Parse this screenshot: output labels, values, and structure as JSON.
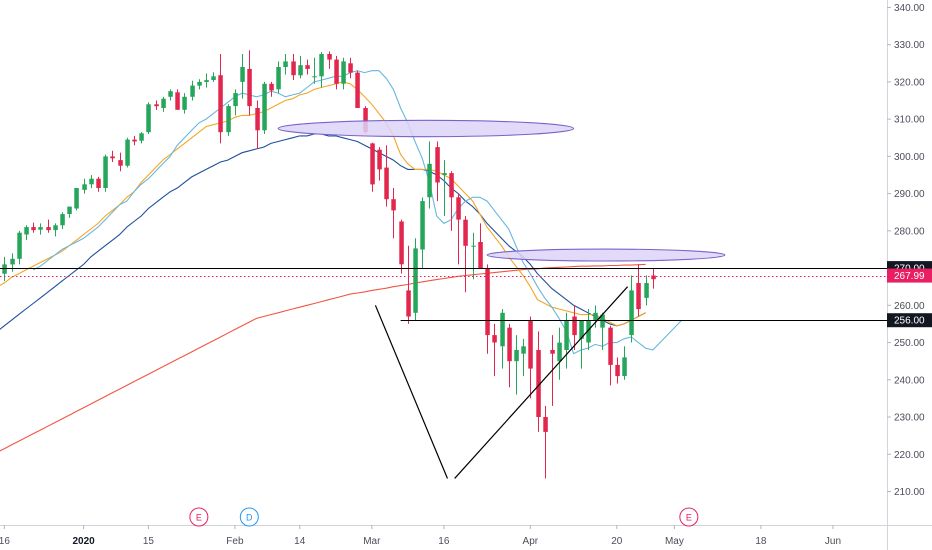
{
  "chart_data": {
    "type": "candlestick",
    "x_ticks": [
      {
        "label": "16",
        "bar": 0,
        "bold": false
      },
      {
        "label": "2020",
        "bar": 11,
        "bold": true
      },
      {
        "label": "15",
        "bar": 20,
        "bold": false
      },
      {
        "label": "Feb",
        "bar": 32,
        "bold": false
      },
      {
        "label": "14",
        "bar": 41,
        "bold": false
      },
      {
        "label": "Mar",
        "bar": 51,
        "bold": false
      },
      {
        "label": "16",
        "bar": 61,
        "bold": false
      },
      {
        "label": "Apr",
        "bar": 73,
        "bold": false
      },
      {
        "label": "20",
        "bar": 85,
        "bold": false
      },
      {
        "label": "May",
        "bar": 93,
        "bold": false
      },
      {
        "label": "18",
        "bar": 105,
        "bold": false
      },
      {
        "label": "Jun",
        "bar": 115,
        "bold": false
      }
    ],
    "y_ticks": [
      "340.00",
      "330.00",
      "320.00",
      "310.00",
      "300.00",
      "290.00",
      "280.00",
      "270.00",
      "260.00",
      "250.00",
      "240.00",
      "230.00",
      "220.00",
      "210.00"
    ],
    "ylim": [
      201,
      342
    ],
    "xlim": [
      -0.6,
      122.5
    ],
    "candles": [
      [
        268.5,
        273,
        266.5,
        271
      ],
      [
        271,
        274,
        269,
        272.5
      ],
      [
        272.5,
        280,
        271,
        279.5
      ],
      [
        279,
        281.5,
        277.5,
        281
      ],
      [
        281,
        282.2,
        279.5,
        280.2
      ],
      [
        280.3,
        282,
        279,
        281
      ],
      [
        281,
        283,
        279.5,
        280.2
      ],
      [
        280.2,
        282,
        278.5,
        281.5
      ],
      [
        281.5,
        285,
        280.5,
        284.5
      ],
      [
        284.5,
        286.5,
        283.5,
        286.5
      ],
      [
        286,
        291.5,
        285.5,
        291.5
      ],
      [
        291,
        294,
        290,
        292.5
      ],
      [
        292.5,
        295,
        291.5,
        294
      ],
      [
        294,
        294.5,
        290.5,
        291.5
      ],
      [
        291.5,
        300.5,
        290.5,
        300
      ],
      [
        300,
        301.5,
        298.5,
        299.5
      ],
      [
        299,
        301,
        296,
        297.5
      ],
      [
        297.5,
        305,
        297,
        304.5
      ],
      [
        304.5,
        305.5,
        303,
        304
      ],
      [
        304.2,
        306.5,
        303.5,
        306.2
      ],
      [
        306.5,
        314.5,
        306,
        314
      ],
      [
        314,
        315,
        312.5,
        313.5
      ],
      [
        313,
        316,
        312,
        315.5
      ],
      [
        316,
        318,
        315,
        317.5
      ],
      [
        317.2,
        318,
        312.5,
        312.5
      ],
      [
        312.5,
        317,
        311.5,
        316
      ],
      [
        316,
        320.3,
        315,
        319
      ],
      [
        319,
        320.7,
        318,
        320
      ],
      [
        320,
        322.3,
        318.5,
        320.5
      ],
      [
        320.5,
        322.6,
        320,
        321.5
      ],
      [
        321.8,
        327.5,
        303.5,
        306.5
      ],
      [
        306.5,
        314,
        305.5,
        313.5
      ],
      [
        313.5,
        318,
        311,
        317
      ],
      [
        320,
        327.5,
        315.5,
        324
      ],
      [
        323.5,
        328.5,
        311,
        313.5
      ],
      [
        313,
        315,
        302,
        307
      ],
      [
        307,
        320,
        306,
        319.5
      ],
      [
        319.5,
        320,
        316,
        317.7
      ],
      [
        318,
        325.5,
        317,
        324
      ],
      [
        324,
        327.5,
        322,
        325.5
      ],
      [
        325.5,
        327.5,
        320.5,
        321.8
      ],
      [
        321.8,
        327,
        321,
        324.5
      ],
      [
        324.5,
        326,
        322,
        323.5
      ],
      [
        321.5,
        326.5,
        319.5,
        321.5
      ],
      [
        321.5,
        328,
        318.5,
        327.5
      ],
      [
        327.5,
        328.2,
        323.5,
        326
      ],
      [
        326,
        327,
        318,
        319.5
      ],
      [
        319.5,
        326.5,
        318,
        325.5
      ],
      [
        325,
        326.5,
        321,
        322.5
      ],
      [
        322.5,
        323,
        313,
        313
      ],
      [
        313,
        313.5,
        306,
        306.5
      ],
      [
        303.5,
        303.7,
        290.5,
        292.5
      ],
      [
        301.8,
        302.5,
        293.5,
        296.5
      ],
      [
        297,
        303,
        286.5,
        288.5
      ],
      [
        288.5,
        291.5,
        278,
        285.5
      ],
      [
        282.5,
        283,
        268.5,
        271
      ],
      [
        264,
        276,
        255,
        257
      ],
      [
        258,
        278,
        256,
        275.3
      ],
      [
        275,
        289,
        270,
        288
      ],
      [
        289,
        304,
        286,
        298
      ],
      [
        302.5,
        304,
        288,
        293
      ],
      [
        295,
        299,
        284,
        295.5
      ],
      [
        295.5,
        296,
        280,
        289
      ],
      [
        289,
        290,
        271,
        283
      ],
      [
        283,
        284,
        263.5,
        276
      ],
      [
        276,
        279.5,
        267,
        276
      ],
      [
        277,
        282,
        270,
        270
      ],
      [
        270,
        271,
        247,
        252
      ],
      [
        252,
        255,
        241,
        250
      ],
      [
        249,
        259,
        243,
        258
      ],
      [
        254,
        255,
        238,
        245
      ],
      [
        245,
        252,
        236,
        248
      ],
      [
        247,
        251,
        241,
        249
      ],
      [
        256,
        257,
        235,
        243
      ],
      [
        248,
        253,
        226,
        230
      ],
      [
        230,
        233,
        213.5,
        226
      ],
      [
        248,
        252,
        233,
        247
      ],
      [
        245,
        254,
        240,
        250
      ],
      [
        248,
        258,
        243,
        256
      ],
      [
        257,
        260,
        248,
        252
      ],
      [
        251,
        255,
        243,
        256
      ],
      [
        250,
        259,
        248,
        256
      ],
      [
        256,
        260,
        254,
        258
      ],
      [
        254,
        258,
        248,
        257.5
      ],
      [
        254,
        254.5,
        238.5,
        244
      ],
      [
        244,
        246,
        239,
        241
      ],
      [
        241,
        249,
        240,
        246
      ],
      [
        252,
        268,
        250,
        264
      ],
      [
        266,
        271,
        257,
        259
      ],
      [
        262,
        268,
        260,
        266
      ],
      [
        268,
        270,
        264.5,
        267
      ]
    ],
    "ema10": [
      269.5,
      270.5,
      272,
      273.5,
      275,
      276,
      277,
      278,
      279.5,
      281,
      283,
      285,
      287,
      288,
      290.5,
      292.5,
      294,
      296,
      298,
      300,
      303,
      305,
      307,
      309,
      310,
      311.5,
      313,
      314.5,
      316,
      317,
      316.5,
      316,
      316.5,
      317.5,
      317,
      316,
      316.5,
      317,
      318.5,
      320,
      320.5,
      321,
      321.5,
      321.5,
      322.5,
      323,
      322.5,
      323,
      323,
      321,
      318,
      313,
      309,
      304,
      299.5,
      293,
      284,
      282,
      283,
      286,
      288,
      289,
      289,
      288,
      285.5,
      283,
      280.5,
      276,
      271.5,
      268.5,
      265,
      262,
      259.5,
      256.5,
      253,
      247,
      248,
      248.5,
      249.5,
      249,
      250,
      250,
      251,
      251.5,
      250,
      248.5,
      248,
      250,
      252,
      254,
      256
    ],
    "ema20": [
      265,
      266,
      267.5,
      268.5,
      269.5,
      270.5,
      271.5,
      272.5,
      273.5,
      274.5,
      276,
      277.5,
      279,
      280.5,
      282,
      284,
      285.5,
      287,
      289,
      290.5,
      293,
      295,
      297,
      299,
      300.5,
      302,
      303.5,
      305,
      306.5,
      308,
      308.5,
      309,
      309.5,
      310.5,
      311,
      311,
      311.5,
      312,
      313,
      314,
      315,
      315.5,
      316.5,
      317,
      318,
      318.5,
      319,
      319.5,
      320,
      319.5,
      318,
      316,
      314,
      311.5,
      309,
      305.5,
      300.5,
      298,
      296.5,
      296.5,
      296.5,
      296,
      295,
      294,
      292,
      290,
      288,
      284.5,
      281,
      278.5,
      276,
      273,
      270.5,
      268,
      265,
      261.5,
      260.5,
      259.5,
      259,
      258.5,
      258,
      257.5,
      257.5,
      257.5,
      256.5,
      255.5,
      254.5,
      255,
      256,
      257,
      258
    ],
    "ema50": [
      253,
      254.5,
      256,
      257.5,
      259,
      260.5,
      262,
      263.5,
      265,
      266.5,
      268,
      269.5,
      271,
      273,
      274.5,
      276,
      277.5,
      279,
      281,
      282.5,
      284,
      286,
      287.5,
      289,
      290.5,
      291.5,
      293,
      294.5,
      295.5,
      296.5,
      297.5,
      298.5,
      299,
      300,
      301,
      301.5,
      302,
      302.5,
      303.5,
      304,
      304.5,
      305,
      305.5,
      305.5,
      306,
      306,
      305.5,
      305.5,
      305,
      304.5,
      304,
      303,
      302,
      301,
      300,
      299,
      297.5,
      296.5,
      296.5,
      296.5,
      296,
      295,
      293.5,
      291.5,
      290,
      288,
      286.5,
      284.5,
      282,
      280,
      278,
      276,
      274.5,
      273,
      271,
      268.5,
      266.5,
      264.5,
      263,
      261.5,
      260,
      259,
      258,
      257,
      256,
      255,
      254.5,
      255,
      256,
      257,
      258
    ],
    "sma200": [
      220.5,
      221.5,
      222.5,
      223.5,
      224.5,
      225.5,
      226.5,
      227.5,
      228.5,
      229.5,
      230.5,
      231.5,
      232.5,
      233.5,
      234.5,
      235.5,
      236.5,
      237.5,
      238.5,
      239.5,
      240.5,
      241.5,
      242.5,
      243.5,
      244.5,
      245.5,
      246.5,
      247.5,
      248.5,
      249.5,
      250.5,
      251.5,
      252.5,
      253.5,
      254.5,
      255.5,
      256.5,
      257,
      257.5,
      258,
      258.5,
      259,
      259.5,
      260,
      260.5,
      261,
      261.5,
      262,
      262.5,
      263,
      263.3,
      263.6,
      264,
      264.3,
      264.6,
      265,
      265.3,
      265.6,
      266,
      266.3,
      266.6,
      266.9,
      267.2,
      267.5,
      267.8,
      268,
      268.2,
      268.4,
      268.6,
      268.8,
      269,
      269.2,
      269.4,
      269.6,
      269.7,
      269.8,
      270,
      270.1,
      270.2,
      270.3,
      270.4,
      270.5,
      270.5,
      270.6,
      270.6,
      270.7,
      270.7,
      270.8,
      270.8,
      270.9,
      271
    ],
    "ma_x_start": -1,
    "ema10_x_start": 4,
    "ema20_x_start": -1,
    "sma200_x_start": -1,
    "hlines": [
      {
        "value": 270,
        "label": "270.00",
        "color": "#000000",
        "style": "solid",
        "tag_bg": "#131722"
      },
      {
        "value": 256,
        "label": "256.00",
        "color": "#000000",
        "style": "solid",
        "tag_bg": "#131722",
        "x_from": 55
      },
      {
        "value": 267.99,
        "label": "267.99",
        "color": "#e91e63",
        "style": "dotted",
        "tag_bg": "#e91e63"
      }
    ],
    "ellipses": [
      {
        "cx": 58.5,
        "cy": 307.5,
        "rx": 20.5,
        "ry": 2.2
      },
      {
        "cx": 83.5,
        "cy": 273.5,
        "rx": 16.5,
        "ry": 1.6
      }
    ],
    "pattern_lines": [
      [
        [
          51.5,
          260
        ],
        [
          61.5,
          213.5
        ]
      ],
      [
        [
          62.5,
          213.5
        ],
        [
          86.5,
          265
        ]
      ]
    ],
    "events": [
      {
        "label": "E",
        "bar": 27,
        "color": "#e91e63"
      },
      {
        "label": "D",
        "bar": 34,
        "color": "#2196f3"
      },
      {
        "label": "E",
        "bar": 95,
        "color": "#e91e63"
      }
    ],
    "colors": {
      "up": "#26a65b",
      "down": "#e2264d",
      "ema10": "#67b7e1",
      "ema20": "#f5a623",
      "ema50": "#1e4f9c",
      "sma200": "#f25543",
      "ellipse_fill": "#dcd3f7",
      "ellipse_stroke": "#7c62c9"
    }
  }
}
